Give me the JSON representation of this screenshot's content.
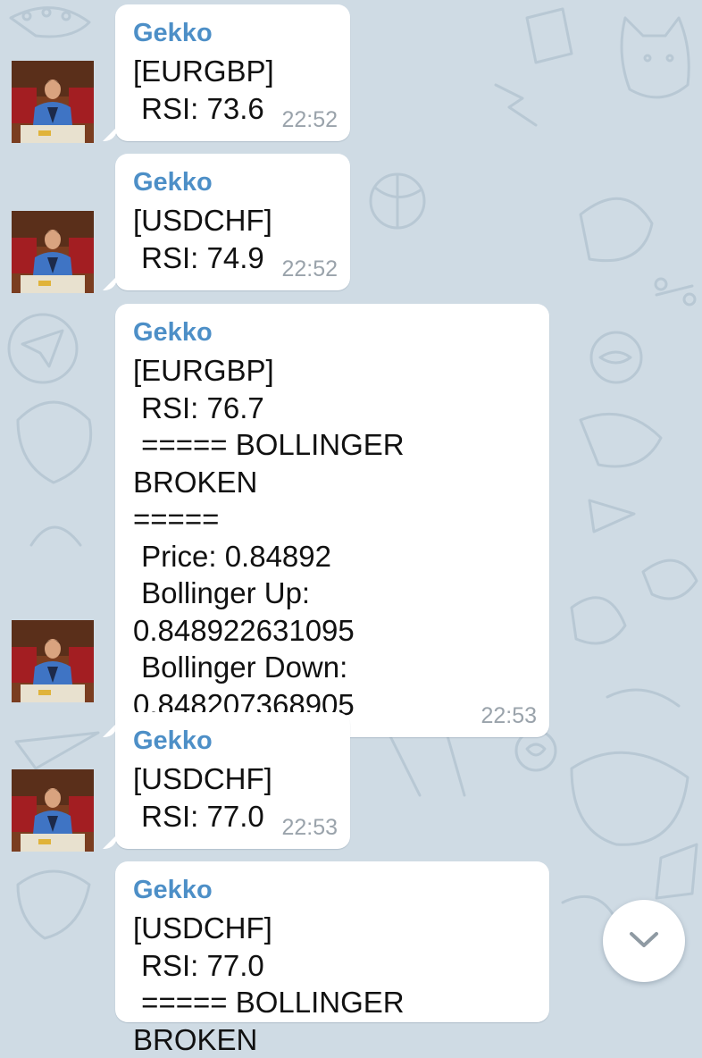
{
  "colors": {
    "background": "#cfdbe4",
    "bubble": "#ffffff",
    "sender_name": "#4d8fc7",
    "timestamp": "#9aa3ab",
    "message_text": "#111111"
  },
  "messages": [
    {
      "sender": "Gekko",
      "text": "[EURGBP]\n RSI: 73.6",
      "time": "22:52"
    },
    {
      "sender": "Gekko",
      "text": "[USDCHF]\n RSI: 74.9",
      "time": "22:52"
    },
    {
      "sender": "Gekko",
      "text": "[EURGBP]\n RSI: 76.7\n ===== BOLLINGER BROKEN\n=====\n Price: 0.84892\n Bollinger Up:\n0.848922631095\n Bollinger Down:\n0.848207368905",
      "time": "22:53"
    },
    {
      "sender": "Gekko",
      "text": "[USDCHF]\n RSI: 77.0",
      "time": "22:53"
    },
    {
      "sender": "Gekko",
      "text": "[USDCHF]\n RSI: 77.0\n ===== BOLLINGER BROKEN",
      "time": ""
    }
  ],
  "scroll_down_button": {
    "icon": "chevron-down-icon"
  }
}
